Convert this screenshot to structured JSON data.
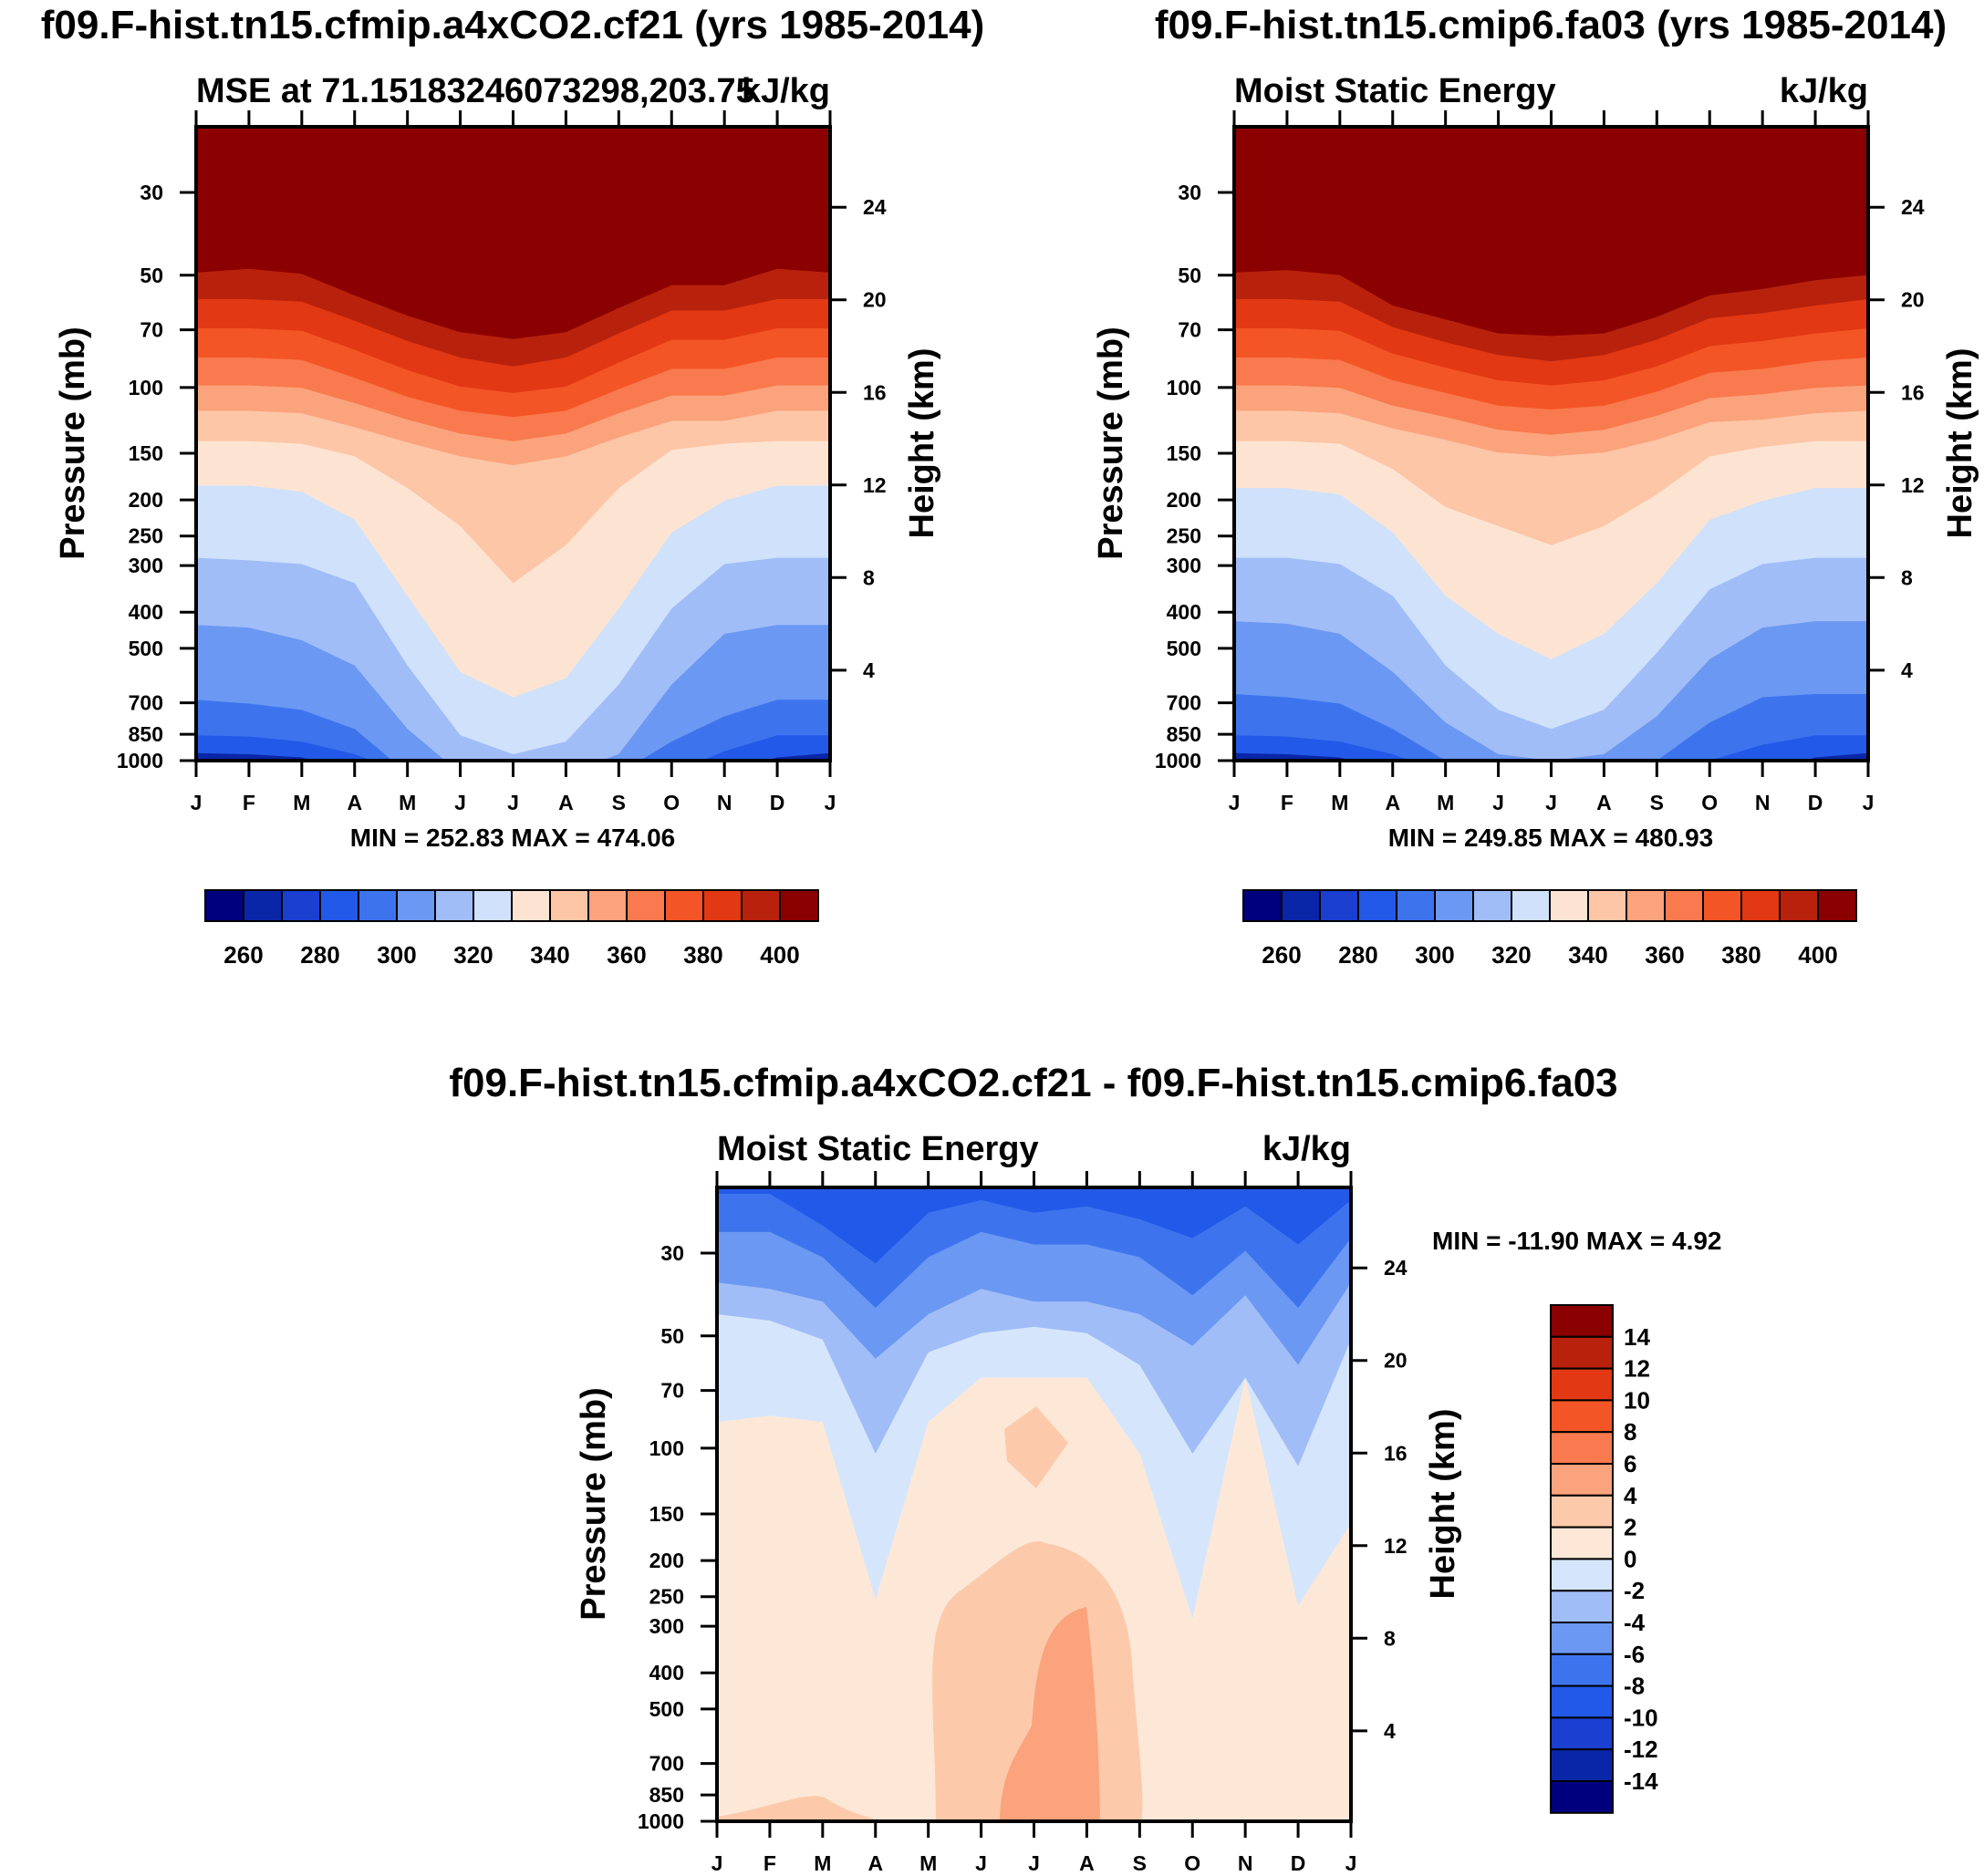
{
  "chart_data": [
    {
      "type": "heatmap",
      "title": "f09.F-hist.tn15.cfmip.a4xCO2.cf21 (yrs 1985-2014)",
      "subtitle_left": "MSE at 71.15183246073298,203.75",
      "subtitle_right": "kJ/kg",
      "xlabel": "",
      "ylabel": "Pressure (mb)",
      "ylabel_right": "Height (km)",
      "x_ticks": [
        "J",
        "F",
        "M",
        "A",
        "M",
        "J",
        "J",
        "A",
        "S",
        "O",
        "N",
        "D",
        "J"
      ],
      "y_ticks": [
        "30",
        "50",
        "70",
        "100",
        "150",
        "200",
        "250",
        "300",
        "400",
        "500",
        "700",
        "850",
        "1000"
      ],
      "y_ticks_right": [
        "24",
        "20",
        "16",
        "12",
        "8",
        "4"
      ],
      "min_max": "MIN = 252.83 MAX = 474.06",
      "colorbar_labels": [
        "260",
        "280",
        "300",
        "320",
        "340",
        "360",
        "380",
        "400"
      ],
      "colorbar_orientation": "horizontal",
      "z_range": [
        252.83,
        474.06
      ]
    },
    {
      "type": "heatmap",
      "title": "f09.F-hist.tn15.cmip6.fa03 (yrs 1985-2014)",
      "subtitle_left": "Moist Static Energy",
      "subtitle_right": "kJ/kg",
      "xlabel": "",
      "ylabel": "Pressure (mb)",
      "ylabel_right": "Height (km)",
      "x_ticks": [
        "J",
        "F",
        "M",
        "A",
        "M",
        "J",
        "J",
        "A",
        "S",
        "O",
        "N",
        "D",
        "J"
      ],
      "y_ticks": [
        "30",
        "50",
        "70",
        "100",
        "150",
        "200",
        "250",
        "300",
        "400",
        "500",
        "700",
        "850",
        "1000"
      ],
      "y_ticks_right": [
        "24",
        "20",
        "16",
        "12",
        "8",
        "4"
      ],
      "min_max": "MIN = 249.85 MAX = 480.93",
      "colorbar_labels": [
        "260",
        "280",
        "300",
        "320",
        "340",
        "360",
        "380",
        "400"
      ],
      "colorbar_orientation": "horizontal",
      "z_range": [
        249.85,
        480.93
      ]
    },
    {
      "type": "heatmap",
      "title": "f09.F-hist.tn15.cfmip.a4xCO2.cf21 - f09.F-hist.tn15.cmip6.fa03",
      "subtitle_left": "Moist Static Energy",
      "subtitle_right": "kJ/kg",
      "xlabel": "",
      "ylabel": "Pressure (mb)",
      "ylabel_right": "Height (km)",
      "x_ticks": [
        "J",
        "F",
        "M",
        "A",
        "M",
        "J",
        "J",
        "A",
        "S",
        "O",
        "N",
        "D",
        "J"
      ],
      "y_ticks": [
        "30",
        "50",
        "70",
        "100",
        "150",
        "200",
        "250",
        "300",
        "400",
        "500",
        "700",
        "850",
        "1000"
      ],
      "y_ticks_right": [
        "24",
        "20",
        "16",
        "12",
        "8",
        "4"
      ],
      "min_max": "MIN = -11.90 MAX =   4.92",
      "colorbar_labels": [
        "14",
        "12",
        "10",
        "8",
        "6",
        "4",
        "2",
        "0",
        "-2",
        "-4",
        "-6",
        "-8",
        "-10",
        "-12",
        "-14"
      ],
      "colorbar_orientation": "vertical",
      "z_range": [
        -11.9,
        4.92
      ]
    }
  ],
  "colors": {
    "mse_levels": [
      "#00007f",
      "#0a26a8",
      "#1a3fd1",
      "#2359e8",
      "#3d74ee",
      "#6b98f2",
      "#a1bdf7",
      "#cfe1fb",
      "#fde4d2",
      "#fcc6a7",
      "#fba37c",
      "#f87a4e",
      "#f45526",
      "#e23813",
      "#b8220c",
      "#8b0000"
    ],
    "diff_levels": [
      "#00007f",
      "#0a26a8",
      "#1a3fd1",
      "#2359e8",
      "#3d74ee",
      "#6b98f2",
      "#a1bdf7",
      "#d5e6fc",
      "#fde8d8",
      "#fccaaa",
      "#fba37c",
      "#f87a4e",
      "#f45526",
      "#e23813",
      "#b8220c",
      "#8b0000"
    ]
  }
}
